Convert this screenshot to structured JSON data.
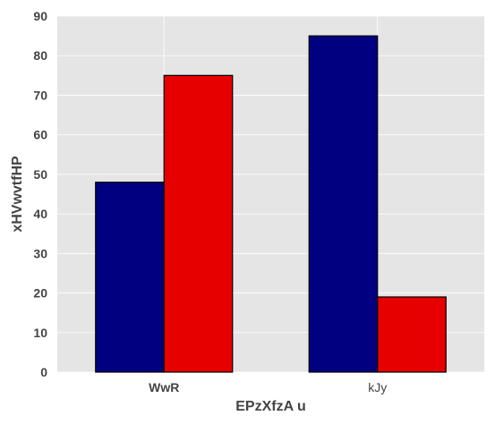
{
  "chart_data": {
    "type": "bar",
    "title": "",
    "xlabel": "EPzXfzA u",
    "ylabel": "xHVwvtfHP",
    "categories": [
      "WwR",
      "kJy"
    ],
    "series": [
      {
        "values": [
          48,
          85
        ],
        "color": "#000080"
      },
      {
        "values": [
          75,
          19
        ],
        "color": "#e60000"
      }
    ],
    "ylim": [
      0,
      90
    ],
    "yticks": [
      0,
      10,
      20,
      30,
      40,
      50,
      60,
      70,
      80,
      90
    ],
    "grid": true,
    "legend": "none",
    "plot_background": "#e5e5e5",
    "bar_edge_color": "#000000"
  }
}
